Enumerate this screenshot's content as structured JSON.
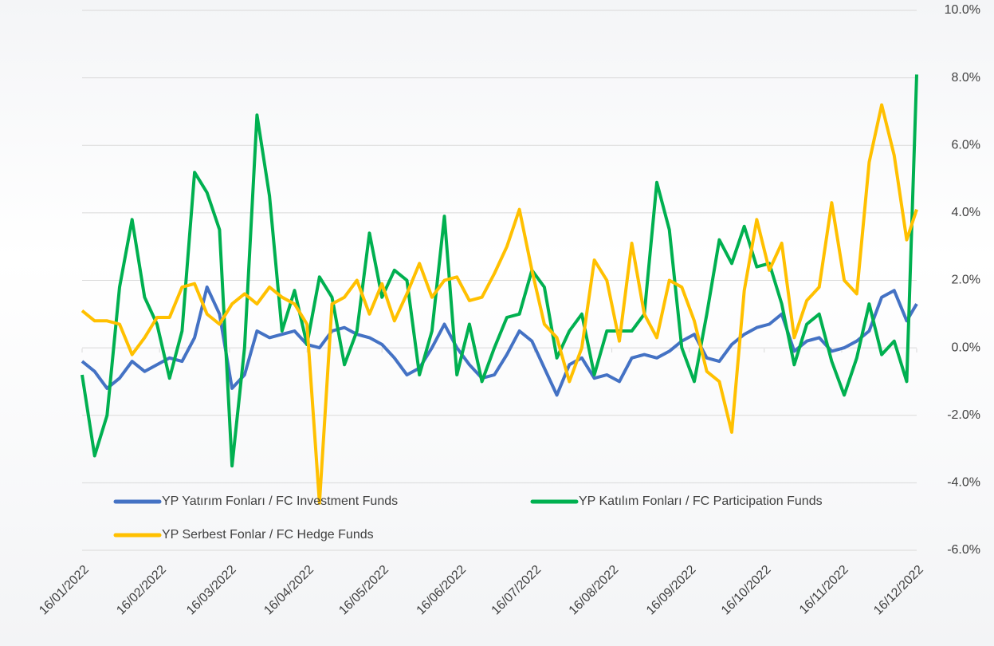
{
  "chart_data": {
    "type": "line",
    "x": [
      "16/01/2022",
      "21/01/2022",
      "26/01/2022",
      "31/01/2022",
      "05/02/2022",
      "10/02/2022",
      "15/02/2022",
      "20/02/2022",
      "25/02/2022",
      "02/03/2022",
      "07/03/2022",
      "12/03/2022",
      "17/03/2022",
      "22/03/2022",
      "27/03/2022",
      "01/04/2022",
      "06/04/2022",
      "11/04/2022",
      "16/04/2022",
      "21/04/2022",
      "26/04/2022",
      "01/05/2022",
      "06/05/2022",
      "11/05/2022",
      "16/05/2022",
      "21/05/2022",
      "26/05/2022",
      "31/05/2022",
      "05/06/2022",
      "10/06/2022",
      "15/06/2022",
      "20/06/2022",
      "25/06/2022",
      "30/06/2022",
      "05/07/2022",
      "10/07/2022",
      "15/07/2022",
      "20/07/2022",
      "25/07/2022",
      "30/07/2022",
      "04/08/2022",
      "09/08/2022",
      "14/08/2022",
      "19/08/2022",
      "24/08/2022",
      "29/08/2022",
      "03/09/2022",
      "08/09/2022",
      "13/09/2022",
      "18/09/2022",
      "23/09/2022",
      "28/09/2022",
      "03/10/2022",
      "08/10/2022",
      "13/10/2022",
      "18/10/2022",
      "23/10/2022",
      "28/10/2022",
      "02/11/2022",
      "07/11/2022",
      "12/11/2022",
      "17/11/2022",
      "22/11/2022",
      "27/11/2022",
      "02/12/2022",
      "07/12/2022",
      "12/12/2022",
      "16/12/2022"
    ],
    "series": [
      {
        "name": "YP Yatırım Fonları / FC Investment Funds",
        "color": "#4472c4",
        "values": [
          -0.4,
          -0.7,
          -1.2,
          -0.9,
          -0.4,
          -0.7,
          -0.5,
          -0.3,
          -0.4,
          0.3,
          1.8,
          1.0,
          -1.2,
          -0.8,
          0.5,
          0.3,
          0.4,
          0.5,
          0.1,
          0.0,
          0.5,
          0.6,
          0.4,
          0.3,
          0.1,
          -0.3,
          -0.8,
          -0.6,
          0.0,
          0.7,
          0.0,
          -0.5,
          -0.9,
          -0.8,
          -0.2,
          0.5,
          0.2,
          -0.6,
          -1.4,
          -0.5,
          -0.3,
          -0.9,
          -0.8,
          -1.0,
          -0.3,
          -0.2,
          -0.3,
          -0.1,
          0.2,
          0.4,
          -0.3,
          -0.4,
          0.1,
          0.4,
          0.6,
          0.7,
          1.0,
          -0.1,
          0.2,
          0.3,
          -0.1,
          0.0,
          0.2,
          0.5,
          1.5,
          1.7,
          0.8,
          1.3
        ]
      },
      {
        "name": "YP Katılım Fonları / FC Participation Funds",
        "color": "#00b050",
        "values": [
          -0.8,
          -3.2,
          -2.0,
          1.8,
          3.8,
          1.5,
          0.7,
          -0.9,
          0.5,
          5.2,
          4.6,
          3.5,
          -3.5,
          0.0,
          6.9,
          4.5,
          0.5,
          1.7,
          0.1,
          2.1,
          1.5,
          -0.5,
          0.5,
          3.4,
          1.5,
          2.3,
          2.0,
          -0.8,
          0.5,
          3.9,
          -0.8,
          0.7,
          -1.0,
          0.0,
          0.9,
          1.0,
          2.3,
          1.8,
          -0.3,
          0.5,
          1.0,
          -0.8,
          0.5,
          0.5,
          0.5,
          1.0,
          4.9,
          3.5,
          0.0,
          -1.0,
          1.0,
          3.2,
          2.5,
          3.6,
          2.4,
          2.5,
          1.3,
          -0.5,
          0.7,
          1.0,
          -0.4,
          -1.4,
          -0.3,
          1.3,
          -0.2,
          0.2,
          -1.0,
          8.1
        ]
      },
      {
        "name": "YP Serbest Fonlar / FC Hedge Funds",
        "color": "#ffc000",
        "values": [
          1.1,
          0.8,
          0.8,
          0.7,
          -0.2,
          0.3,
          0.9,
          0.9,
          1.8,
          1.9,
          1.0,
          0.7,
          1.3,
          1.6,
          1.3,
          1.8,
          1.5,
          1.3,
          0.7,
          -4.6,
          1.3,
          1.5,
          2.0,
          1.0,
          1.9,
          0.8,
          1.6,
          2.5,
          1.5,
          2.0,
          2.1,
          1.4,
          1.5,
          2.2,
          3.0,
          4.1,
          2.3,
          0.7,
          0.3,
          -1.0,
          0.0,
          2.6,
          2.0,
          0.2,
          3.1,
          1.0,
          0.3,
          2.0,
          1.8,
          0.8,
          -0.7,
          -1.0,
          -2.5,
          1.7,
          3.8,
          2.3,
          3.1,
          0.3,
          1.4,
          1.8,
          4.3,
          2.0,
          1.6,
          5.5,
          7.2,
          5.7,
          3.2,
          4.1
        ]
      }
    ],
    "xlim": [
      "16/01/2022",
      "16/12/2022"
    ],
    "xticks": [
      "16/01/2022",
      "16/02/2022",
      "16/03/2022",
      "16/04/2022",
      "16/05/2022",
      "16/06/2022",
      "16/07/2022",
      "16/08/2022",
      "16/09/2022",
      "16/10/2022",
      "16/11/2022",
      "16/12/2022"
    ],
    "ylim": [
      -6,
      10
    ],
    "yticks": [
      {
        "value": -6,
        "label": "-6.0%"
      },
      {
        "value": -4,
        "label": "-4.0%"
      },
      {
        "value": -2,
        "label": "-2.0%"
      },
      {
        "value": 0,
        "label": "0.0%"
      },
      {
        "value": 2,
        "label": "2.0%"
      },
      {
        "value": 4,
        "label": "4.0%"
      },
      {
        "value": 6,
        "label": "6.0%"
      },
      {
        "value": 8,
        "label": "8.0%"
      },
      {
        "value": 10,
        "label": "10.0%"
      }
    ],
    "grid": true
  }
}
